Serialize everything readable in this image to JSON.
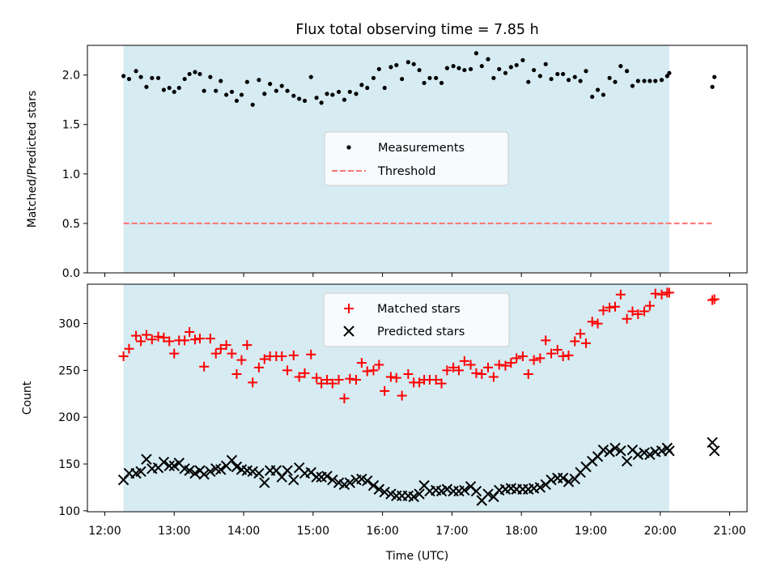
{
  "chart_data": [
    {
      "type": "scatter",
      "title": "Flux total observing time = 7.85 h",
      "xlabel": "",
      "ylabel": "Matched/Predicted stars",
      "xlim": [
        11.75,
        21.25
      ],
      "ylim": [
        0.0,
        2.3
      ],
      "yticks": [
        "0.0",
        "0.5",
        "1.0",
        "1.5",
        "2.0"
      ],
      "shaded_span": [
        12.27,
        20.13
      ],
      "legend": {
        "position": "center",
        "entries": [
          "Measurements",
          "Threshold"
        ]
      },
      "series": [
        {
          "name": "Measurements",
          "marker": "dot",
          "color": "#000000",
          "x": [
            12.27,
            12.35,
            12.45,
            12.52,
            12.6,
            12.68,
            12.77,
            12.85,
            12.93,
            13.0,
            13.07,
            13.15,
            13.22,
            13.3,
            13.37,
            13.43,
            13.52,
            13.6,
            13.67,
            13.75,
            13.83,
            13.9,
            13.97,
            14.05,
            14.13,
            14.22,
            14.3,
            14.38,
            14.47,
            14.55,
            14.63,
            14.72,
            14.8,
            14.88,
            14.97,
            15.05,
            15.12,
            15.2,
            15.28,
            15.37,
            15.45,
            15.53,
            15.62,
            15.7,
            15.78,
            15.87,
            15.95,
            16.03,
            16.12,
            16.2,
            16.28,
            16.37,
            16.45,
            16.53,
            16.6,
            16.68,
            16.77,
            16.85,
            16.93,
            17.02,
            17.1,
            17.18,
            17.27,
            17.35,
            17.43,
            17.52,
            17.6,
            17.68,
            17.77,
            17.85,
            17.93,
            18.02,
            18.1,
            18.18,
            18.27,
            18.35,
            18.43,
            18.52,
            18.6,
            18.68,
            18.77,
            18.85,
            18.93,
            19.02,
            19.1,
            19.18,
            19.27,
            19.35,
            19.43,
            19.52,
            19.6,
            19.68,
            19.77,
            19.85,
            19.93,
            20.02,
            20.1,
            20.13,
            20.75,
            20.78
          ],
          "y": [
            1.99,
            1.96,
            2.04,
            1.98,
            1.88,
            1.97,
            1.97,
            1.85,
            1.87,
            1.83,
            1.87,
            1.96,
            2.01,
            2.03,
            2.01,
            1.84,
            1.98,
            1.84,
            1.94,
            1.8,
            1.83,
            1.74,
            1.8,
            1.93,
            1.7,
            1.95,
            1.81,
            1.91,
            1.84,
            1.89,
            1.84,
            1.79,
            1.76,
            1.74,
            1.98,
            1.77,
            1.72,
            1.81,
            1.8,
            1.83,
            1.75,
            1.83,
            1.81,
            1.9,
            1.87,
            1.97,
            2.06,
            1.87,
            2.08,
            2.1,
            1.96,
            2.13,
            2.11,
            2.05,
            1.92,
            1.97,
            1.97,
            1.92,
            2.07,
            2.09,
            2.07,
            2.05,
            2.06,
            2.22,
            2.09,
            2.16,
            1.97,
            2.06,
            2.02,
            2.08,
            2.1,
            2.15,
            1.93,
            2.05,
            1.99,
            2.11,
            1.96,
            2.01,
            2.01,
            1.95,
            1.98,
            1.94,
            2.04,
            1.78,
            1.85,
            1.8,
            1.97,
            1.93,
            2.09,
            2.04,
            1.89,
            1.94,
            1.94,
            1.94,
            1.94,
            1.95,
            1.99,
            2.02,
            1.88,
            1.98
          ]
        },
        {
          "name": "Threshold",
          "style": "dashed",
          "color": "#ff7373",
          "x": [
            12.27,
            20.78
          ],
          "y": [
            0.5,
            0.5
          ]
        }
      ]
    },
    {
      "type": "scatter",
      "title": "",
      "xlabel": "Time (UTC)",
      "ylabel": "Count",
      "xlim": [
        11.75,
        21.25
      ],
      "ylim": [
        99,
        342
      ],
      "yticks": [
        "100",
        "150",
        "200",
        "250",
        "300"
      ],
      "xticks": [
        "12:00",
        "13:00",
        "14:00",
        "15:00",
        "16:00",
        "17:00",
        "18:00",
        "19:00",
        "20:00",
        "21:00"
      ],
      "xtick_values": [
        12,
        13,
        14,
        15,
        16,
        17,
        18,
        19,
        20,
        21
      ],
      "shaded_span": [
        12.27,
        20.13
      ],
      "legend": {
        "position": "top-center",
        "entries": [
          "Matched stars",
          "Predicted stars"
        ]
      },
      "series": [
        {
          "name": "Matched stars",
          "marker": "plus",
          "color": "#ff0000",
          "x": [
            12.27,
            12.35,
            12.45,
            12.52,
            12.6,
            12.68,
            12.77,
            12.85,
            12.93,
            13.0,
            13.07,
            13.15,
            13.22,
            13.3,
            13.37,
            13.43,
            13.52,
            13.6,
            13.67,
            13.75,
            13.83,
            13.9,
            13.97,
            14.05,
            14.13,
            14.22,
            14.3,
            14.38,
            14.47,
            14.55,
            14.63,
            14.72,
            14.8,
            14.88,
            14.97,
            15.05,
            15.12,
            15.2,
            15.28,
            15.37,
            15.45,
            15.53,
            15.62,
            15.7,
            15.78,
            15.87,
            15.95,
            16.03,
            16.12,
            16.2,
            16.28,
            16.37,
            16.45,
            16.53,
            16.6,
            16.68,
            16.77,
            16.85,
            16.93,
            17.02,
            17.1,
            17.18,
            17.27,
            17.35,
            17.43,
            17.52,
            17.6,
            17.68,
            17.77,
            17.85,
            17.93,
            18.02,
            18.1,
            18.18,
            18.27,
            18.35,
            18.43,
            18.52,
            18.6,
            18.68,
            18.77,
            18.85,
            18.93,
            19.02,
            19.1,
            19.18,
            19.27,
            19.35,
            19.43,
            19.52,
            19.6,
            19.68,
            19.77,
            19.85,
            19.93,
            20.02,
            20.1,
            20.13,
            20.75,
            20.78
          ],
          "y": [
            265,
            273,
            287,
            281,
            288,
            283,
            286,
            285,
            281,
            268,
            282,
            282,
            291,
            283,
            284,
            254,
            284,
            268,
            273,
            277,
            268,
            246,
            261,
            277,
            237,
            253,
            262,
            265,
            265,
            265,
            250,
            266,
            243,
            247,
            267,
            242,
            236,
            240,
            236,
            240,
            220,
            241,
            240,
            258,
            249,
            250,
            256,
            228,
            243,
            242,
            223,
            246,
            237,
            237,
            240,
            240,
            240,
            236,
            250,
            253,
            250,
            260,
            256,
            247,
            246,
            253,
            243,
            256,
            255,
            258,
            263,
            265,
            246,
            261,
            263,
            282,
            268,
            272,
            265,
            266,
            281,
            289,
            279,
            302,
            300,
            314,
            317,
            318,
            331,
            305,
            313,
            310,
            313,
            319,
            332,
            331,
            333,
            333,
            325,
            326
          ]
        },
        {
          "name": "Predicted stars",
          "marker": "x",
          "color": "#000000",
          "x": [
            12.27,
            12.35,
            12.45,
            12.52,
            12.6,
            12.68,
            12.77,
            12.85,
            12.93,
            13.0,
            13.07,
            13.15,
            13.22,
            13.3,
            13.37,
            13.43,
            13.52,
            13.6,
            13.67,
            13.75,
            13.83,
            13.9,
            13.97,
            14.05,
            14.13,
            14.22,
            14.3,
            14.38,
            14.47,
            14.55,
            14.63,
            14.72,
            14.8,
            14.88,
            14.97,
            15.05,
            15.12,
            15.2,
            15.28,
            15.37,
            15.45,
            15.53,
            15.62,
            15.7,
            15.78,
            15.87,
            15.95,
            16.03,
            16.12,
            16.2,
            16.28,
            16.37,
            16.45,
            16.53,
            16.6,
            16.68,
            16.77,
            16.85,
            16.93,
            17.02,
            17.1,
            17.18,
            17.27,
            17.35,
            17.43,
            17.52,
            17.6,
            17.68,
            17.77,
            17.85,
            17.93,
            18.02,
            18.1,
            18.18,
            18.27,
            18.35,
            18.43,
            18.52,
            18.6,
            18.68,
            18.77,
            18.85,
            18.93,
            19.02,
            19.1,
            19.18,
            19.27,
            19.35,
            19.43,
            19.52,
            19.6,
            19.68,
            19.77,
            19.85,
            19.93,
            20.02,
            20.1,
            20.13,
            20.75,
            20.78
          ],
          "y": [
            133,
            140,
            140,
            142,
            155,
            145,
            146,
            152,
            148,
            148,
            151,
            145,
            143,
            140,
            143,
            139,
            142,
            145,
            144,
            148,
            154,
            147,
            144,
            143,
            142,
            140,
            130,
            143,
            143,
            136,
            143,
            133,
            146,
            140,
            141,
            136,
            136,
            137,
            133,
            130,
            128,
            130,
            133,
            134,
            132,
            127,
            123,
            120,
            118,
            116,
            116,
            116,
            115,
            118,
            127,
            121,
            122,
            121,
            123,
            121,
            121,
            122,
            126,
            121,
            111,
            118,
            115,
            122,
            123,
            124,
            123,
            123,
            123,
            124,
            125,
            128,
            133,
            135,
            135,
            131,
            134,
            141,
            147,
            153,
            158,
            165,
            163,
            167,
            164,
            153,
            165,
            160,
            162,
            160,
            163,
            164,
            167,
            164,
            173,
            164
          ]
        }
      ]
    }
  ]
}
